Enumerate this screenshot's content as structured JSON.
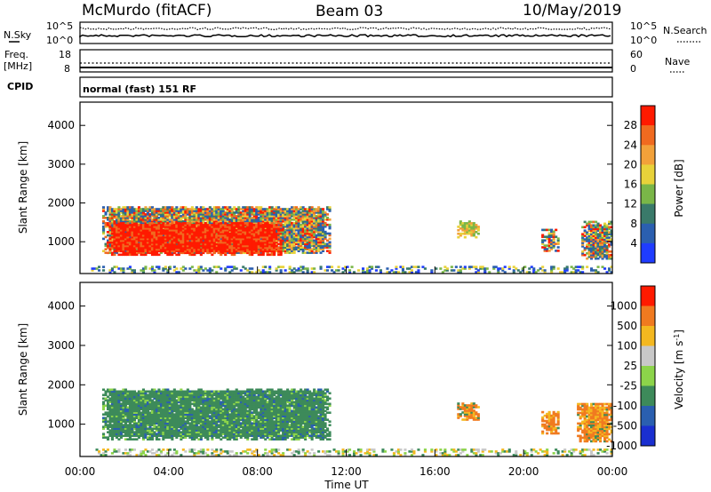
{
  "header": {
    "station": "McMurdo (fitACF)",
    "beam": "Beam 03",
    "date": "10/May/2019"
  },
  "top_panels": {
    "nsky_label": "N.Sky",
    "nsky_ticks": [
      "10^5",
      "10^0"
    ],
    "nsearch_label": "N.Search",
    "nsearch_ticks": [
      "10^5",
      "10^0"
    ],
    "freq_label_1": "Freq.",
    "freq_label_2": "[MHz]",
    "freq_ticks": [
      "18",
      "8"
    ],
    "nave_label": "Nave",
    "nave_ticks": [
      "60",
      "0"
    ],
    "cpid_label": "CPID",
    "cpid_text": "normal (fast) 151 RF"
  },
  "chart_data": [
    {
      "type": "heatmap",
      "name": "power-panel",
      "ylabel": "Slant Range [km]",
      "ylim": [
        180,
        4600
      ],
      "yticks": [
        "1000",
        "2000",
        "3000",
        "4000"
      ],
      "xlim": [
        "00:00",
        "24:00"
      ],
      "colorbar": {
        "label": "Power [dB]",
        "ticks": [
          "4",
          "8",
          "12",
          "16",
          "20",
          "24",
          "28"
        ],
        "colors": [
          "#1f3cff",
          "#2b5fb0",
          "#3a7a6a",
          "#7ab648",
          "#e8d23a",
          "#f2a13a",
          "#f06a20",
          "#ff1a00"
        ]
      },
      "regions": [
        {
          "t0": 1.0,
          "t1": 11.2,
          "r0": 700,
          "r1": 1900,
          "level": "medium"
        },
        {
          "t0": 1.2,
          "t1": 9.0,
          "r0": 650,
          "r1": 1500,
          "level": "high"
        },
        {
          "t0": 17.0,
          "t1": 18.0,
          "r0": 1100,
          "r1": 1550,
          "level": "low"
        },
        {
          "t0": 20.8,
          "t1": 21.6,
          "r0": 750,
          "r1": 1300,
          "level": "medium"
        },
        {
          "t0": 22.6,
          "t1": 24.0,
          "r0": 550,
          "r1": 1500,
          "level": "medium"
        },
        {
          "t0": 0.5,
          "t1": 24.0,
          "r0": 200,
          "r1": 380,
          "level": "noise"
        }
      ]
    },
    {
      "type": "heatmap",
      "name": "velocity-panel",
      "ylabel": "Slant Range [km]",
      "ylim": [
        180,
        4600
      ],
      "yticks": [
        "1000",
        "2000",
        "3000",
        "4000"
      ],
      "xlabel": "Time UT",
      "xticks": [
        "00:00",
        "04:00",
        "08:00",
        "12:00",
        "16:00",
        "20:00",
        "00:00"
      ],
      "xlim": [
        "00:00",
        "24:00"
      ],
      "colorbar": {
        "label": "Velocity [m s^-1]",
        "ticks": [
          "1000",
          "500",
          "100",
          "25",
          "-25",
          "-100",
          "-500",
          "-1000"
        ],
        "colors": [
          "#1a2fd0",
          "#2a5fb0",
          "#3d8a5a",
          "#8cd44a",
          "#c8c8c8",
          "#f4b820",
          "#f07a20",
          "#ff1a00"
        ]
      },
      "regions": [
        {
          "t0": 1.0,
          "t1": 11.2,
          "r0": 600,
          "r1": 1900,
          "level": "toward-small"
        },
        {
          "t0": 17.0,
          "t1": 18.0,
          "r0": 1100,
          "r1": 1550,
          "level": "away-mid"
        },
        {
          "t0": 20.8,
          "t1": 21.6,
          "r0": 750,
          "r1": 1300,
          "level": "away-mid"
        },
        {
          "t0": 22.4,
          "t1": 24.0,
          "r0": 550,
          "r1": 1500,
          "level": "away-mid"
        },
        {
          "t0": 0.5,
          "t1": 24.0,
          "r0": 200,
          "r1": 380,
          "level": "noise"
        }
      ]
    }
  ]
}
